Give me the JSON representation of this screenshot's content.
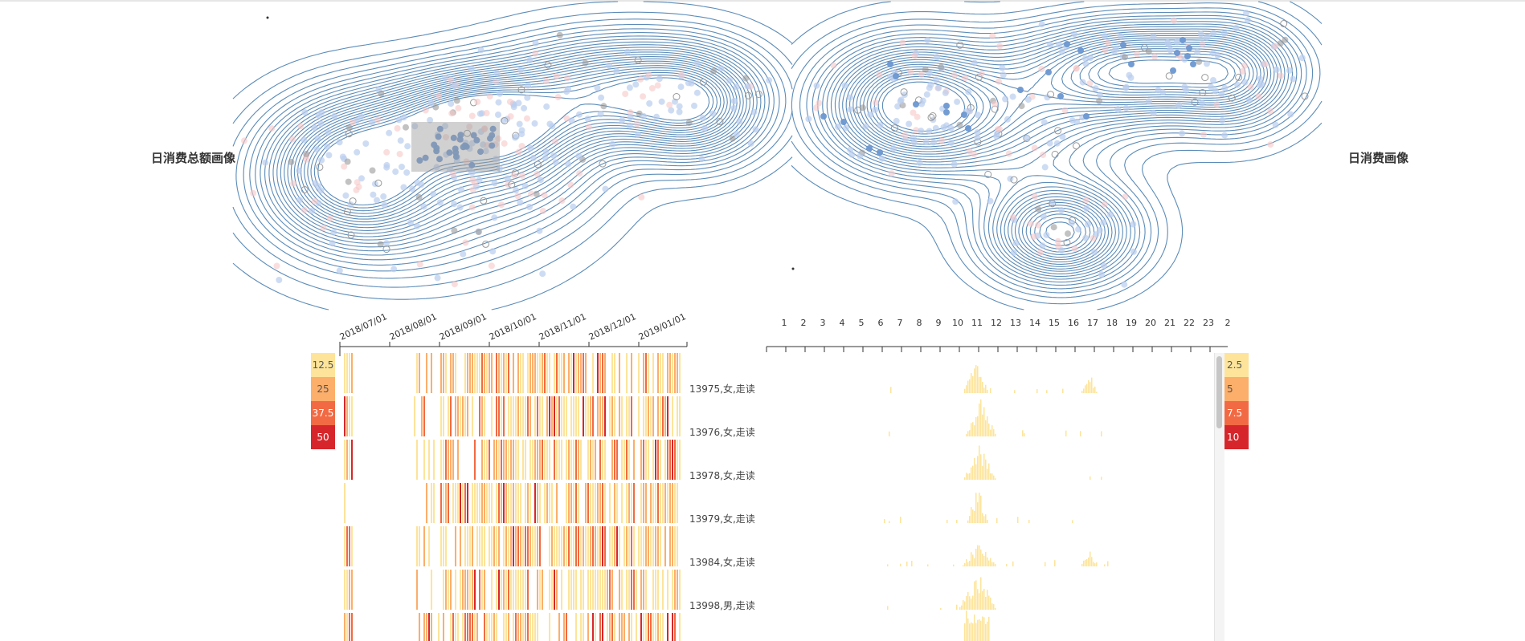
{
  "titles": {
    "left": "日消费总额画像",
    "right": "日消费画像"
  },
  "colors": {
    "contour": "#4a7fb0",
    "dot_blue": "#6b97d0",
    "dot_blue_light": "#b9cdee",
    "dot_pink_light": "#f6c8c8",
    "dot_gray": "#9a9a9a",
    "selection": "#9a9a9a",
    "heat_1": "#fde49a",
    "heat_2": "#fcae6b",
    "heat_3": "#f26a43",
    "heat_4": "#d7262b"
  },
  "legends": {
    "left": [
      "12.5",
      "25",
      "37.5",
      "50"
    ],
    "right": [
      "2.5",
      "5",
      "7.5",
      "10"
    ]
  },
  "users": [
    "13975,女,走读",
    "13976,女,走读",
    "13978,女,走读",
    "13979,女,走读",
    "13984,女,走读",
    "13998,男,走读"
  ],
  "chart_data": [
    {
      "type": "scatter",
      "description_key": "left-density",
      "title": "日消费总额画像",
      "contour_centers": [
        [
          0.14,
          0.5
        ],
        [
          0.47,
          0.35
        ],
        [
          0.68,
          0.3
        ]
      ],
      "selection_brush": true
    },
    {
      "type": "scatter",
      "description_key": "right-density",
      "title": "日消费画像",
      "contour_centers": [
        [
          0.22,
          0.35
        ],
        [
          0.62,
          0.22
        ],
        [
          0.51,
          0.74
        ]
      ]
    },
    {
      "type": "bar",
      "description_key": "date-heat-strips",
      "x_ticks": [
        "2018/07/01",
        "2018/08/01",
        "2018/09/01",
        "2018/10/01",
        "2018/11/01",
        "2018/12/01",
        "2019/01/01"
      ],
      "rows": [
        "13975,女,走读",
        "13976,女,走读",
        "13978,女,走读",
        "13979,女,走读",
        "13984,女,走读",
        "13998,男,走读"
      ],
      "color_scale": [
        12.5,
        25,
        37.5,
        50
      ]
    },
    {
      "type": "bar",
      "description_key": "hour-histograms",
      "x_ticks": [
        "1",
        "2",
        "3",
        "4",
        "5",
        "6",
        "7",
        "8",
        "9",
        "10",
        "11",
        "12",
        "13",
        "14",
        "15",
        "16",
        "17",
        "18",
        "19",
        "20",
        "21",
        "22",
        "23",
        "2"
      ],
      "rows": [
        "13975,女,走读",
        "13976,女,走读",
        "13978,女,走读",
        "13979,女,走读",
        "13984,女,走读",
        "13998,男,走读"
      ],
      "color_scale": [
        2.5,
        5,
        7.5,
        10
      ]
    }
  ]
}
